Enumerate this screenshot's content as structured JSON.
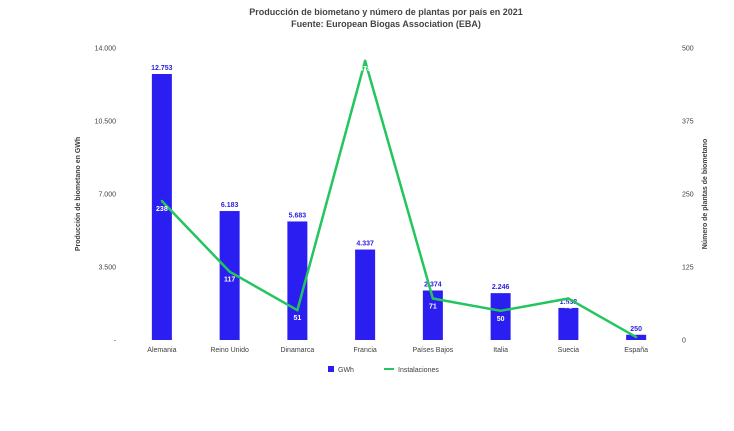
{
  "chart_data": {
    "type": "bar",
    "title": "Producción de biometano y número de plantas por país en 2021",
    "subtitle": "Fuente: European Biogas Association (EBA)",
    "categories": [
      "Alemania",
      "Reino Unido",
      "Dinamarca",
      "Francia",
      "Países Bajos",
      "Italia",
      "Suecia",
      "España"
    ],
    "ylabel": "Producción de biometano en GWh",
    "y2label": "Número de plantas de biometano",
    "ylim": [
      0,
      14000
    ],
    "y2lim": [
      0,
      500
    ],
    "yticks": [
      "-",
      "3.500",
      "7.000",
      "10.500",
      "14.000"
    ],
    "y2ticks": [
      "0",
      "125",
      "250",
      "375",
      "500"
    ],
    "series": [
      {
        "name": "GWh",
        "type": "bar",
        "axis": "left",
        "color": "#2b1ef0",
        "values": [
          12753,
          6183,
          5683,
          4337,
          2374,
          2246,
          1538,
          250
        ],
        "labels": [
          "12.753",
          "6.183",
          "5.683",
          "4.337",
          "2.374",
          "2.246",
          "1.538",
          "250"
        ]
      },
      {
        "name": "Instalaciones",
        "type": "line",
        "axis": "right",
        "color": "#22c55e",
        "values": [
          238,
          117,
          51,
          478,
          71,
          50,
          71,
          5
        ],
        "labels": [
          "238",
          "117",
          "51",
          "478",
          "71",
          "50",
          "71",
          "5"
        ]
      }
    ],
    "legend": "bottom",
    "grid": false
  }
}
